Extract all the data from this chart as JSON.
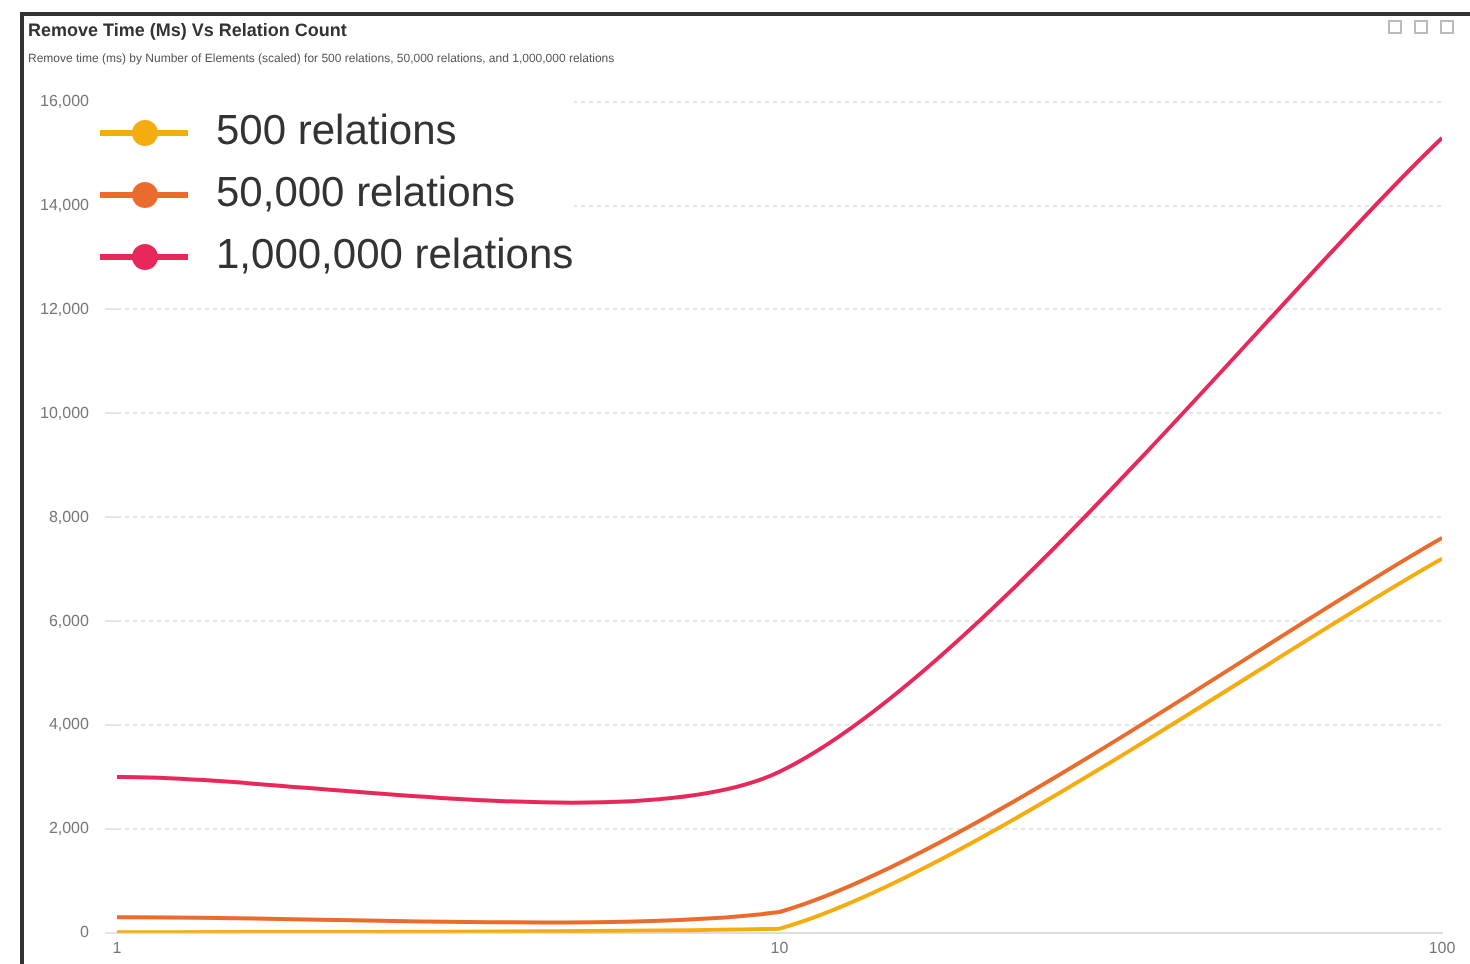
{
  "chart_data": {
    "type": "line",
    "title": "Remove Time (Ms) Vs Relation Count",
    "subtitle": "Remove time (ms) by Number of Elements (scaled) for 500 relations, 50,000 relations, and 1,000,000 relations",
    "x": [
      1,
      10,
      100
    ],
    "series": [
      {
        "name": "500 relations",
        "color": "#f5ac0f",
        "values": [
          10,
          80,
          7200
        ]
      },
      {
        "name": "50,000 relations",
        "color": "#ea6c2c",
        "values": [
          300,
          400,
          7600
        ]
      },
      {
        "name": "1,000,000 relations",
        "color": "#e8285a",
        "values": [
          3000,
          3100,
          15300
        ]
      }
    ],
    "log": "x",
    "xlim": [
      1,
      100
    ],
    "xticks": [
      1,
      10,
      100
    ],
    "ylim": [
      0,
      16000
    ],
    "yticks": [
      0,
      {
        "value": 2000,
        "label": "2,000"
      },
      {
        "value": 4000,
        "label": "4,000"
      },
      {
        "value": 6000,
        "label": "6,000"
      },
      {
        "value": 8000,
        "label": "8,000"
      },
      {
        "value": 10000,
        "label": "10,000"
      },
      {
        "value": 12000,
        "label": "12,000"
      },
      {
        "value": 14000,
        "label": "14,000"
      },
      {
        "value": 16000,
        "label": "16,000"
      }
    ],
    "grid": "y",
    "legend": "top left",
    "marker": "none",
    "line_style": "solid"
  }
}
